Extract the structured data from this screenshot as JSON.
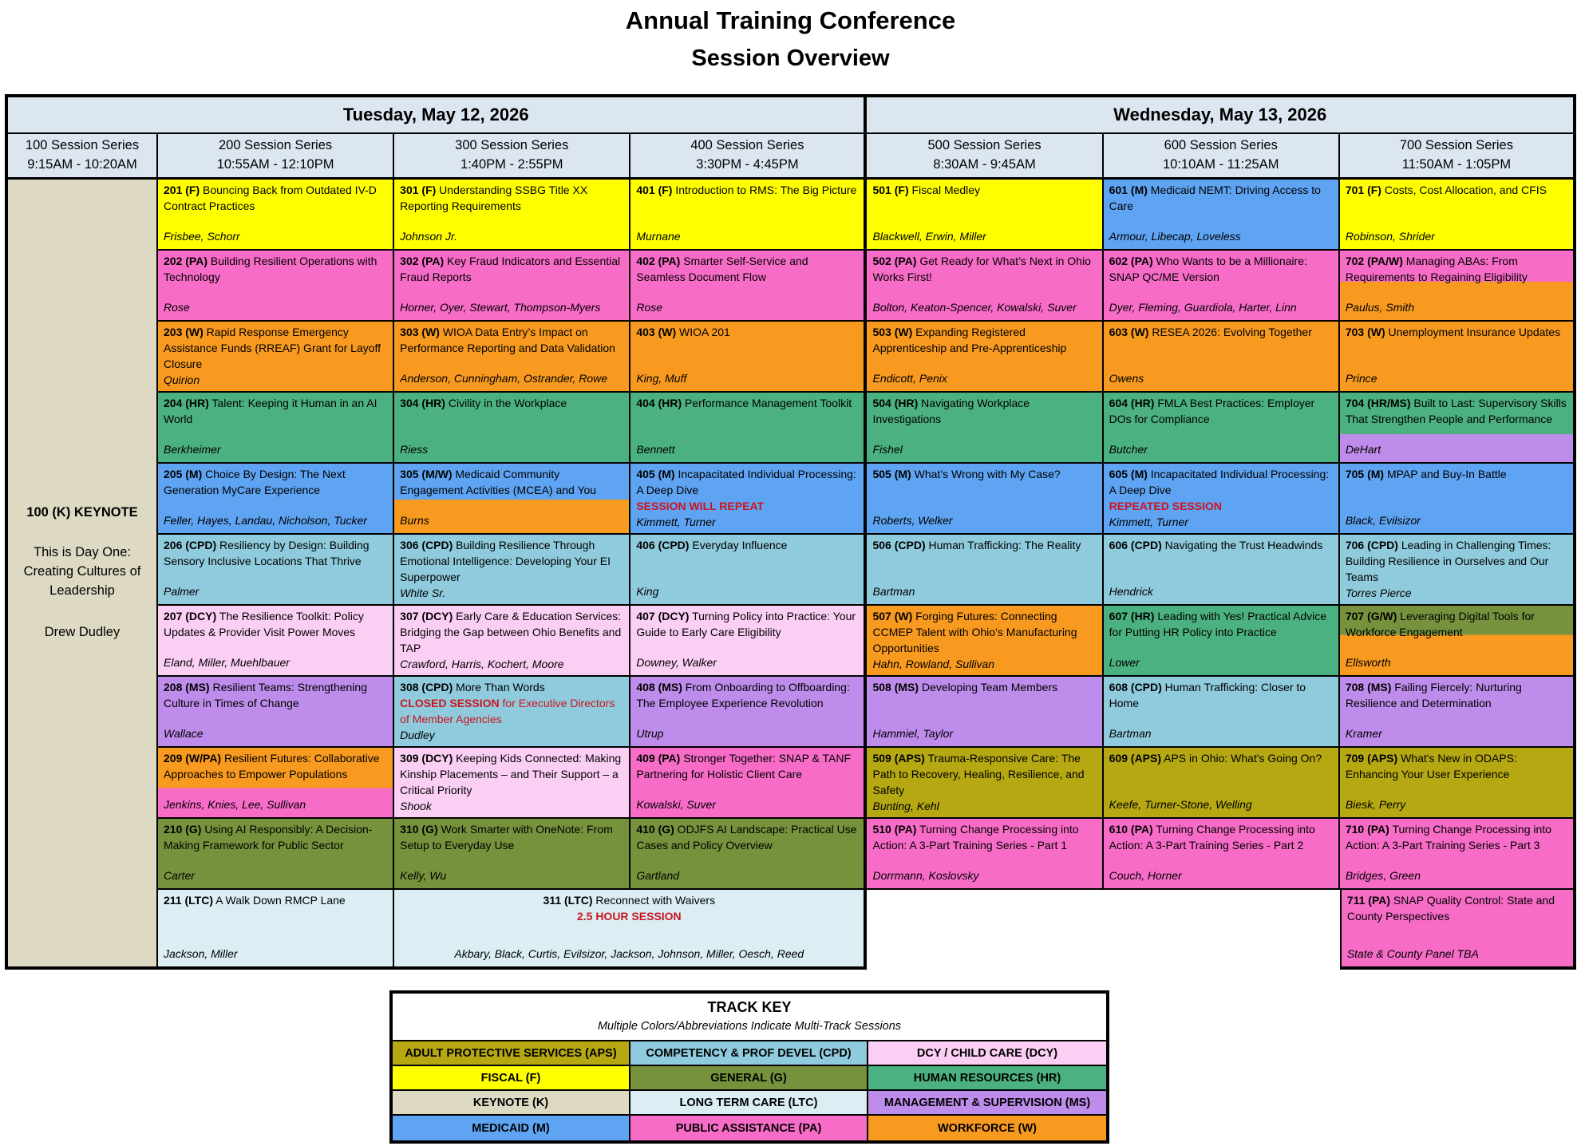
{
  "page_title": {
    "line1": "Annual Training Conference",
    "line2": "Session Overview"
  },
  "track_colors": {
    "APS": "#B5A813",
    "CPD": "#8FCBDC",
    "DCY": "#FBCFF4",
    "F": "#FFFF00",
    "G": "#76923C",
    "HR": "#4CB180",
    "K": "#DDD9C3",
    "LTC": "#DAEEF3",
    "MS": "#BE8CEA",
    "M": "#5FA4F2",
    "PA": "#F76CC7",
    "W": "#F89A1F"
  },
  "header_color": "#DCE6F1",
  "note_color": "#CC1420",
  "schedule": {
    "days": [
      {
        "label": "Tuesday, May 12, 2026",
        "span": 4
      },
      {
        "label": "Wednesday, May 13, 2026",
        "span": 3
      }
    ],
    "columns": [
      {
        "series": "100 Session Series",
        "time": "9:15AM - 10:20AM"
      },
      {
        "series": "200 Session Series",
        "time": "10:55AM - 12:10PM"
      },
      {
        "series": "300 Session Series",
        "time": "1:40PM - 2:55PM"
      },
      {
        "series": "400 Session Series",
        "time": "3:30PM - 4:45PM"
      },
      {
        "series": "500 Session Series",
        "time": "8:30AM - 9:45AM"
      },
      {
        "series": "600 Session Series",
        "time": "10:10AM - 11:25AM"
      },
      {
        "series": "700 Session Series",
        "time": "11:50AM - 1:05PM"
      }
    ],
    "keynote": {
      "title": "100 (K) KEYNOTE",
      "subtitle": "This is Day One: Creating Cultures of Leadership",
      "speaker": "Drew Dudley",
      "track": "K"
    },
    "sessions": [
      {
        "code": "201",
        "tracks": [
          "F"
        ],
        "title": "Bouncing Back from Outdated IV-D Contract Practices",
        "speakers": "Frisbee, Schorr"
      },
      {
        "code": "202",
        "tracks": [
          "PA"
        ],
        "title": "Building Resilient Operations with Technology",
        "speakers": "Rose"
      },
      {
        "code": "203",
        "tracks": [
          "W"
        ],
        "title": "Rapid Response Emergency Assistance Funds (RREAF) Grant for Layoff Closure",
        "speakers": "Quirion"
      },
      {
        "code": "204",
        "tracks": [
          "HR"
        ],
        "title": "Talent: Keeping it Human in an AI World",
        "speakers": "Berkheimer"
      },
      {
        "code": "205",
        "tracks": [
          "M"
        ],
        "title": "Choice By Design: The Next Generation MyCare Experience",
        "speakers": "Feller, Hayes, Landau, Nicholson, Tucker"
      },
      {
        "code": "206",
        "tracks": [
          "CPD"
        ],
        "title": "Resiliency by Design: Building Sensory Inclusive Locations That Thrive",
        "speakers": "Palmer"
      },
      {
        "code": "207",
        "tracks": [
          "DCY"
        ],
        "title": "The Resilience Toolkit: Policy Updates & Provider Visit Power Moves",
        "speakers": "Eland, Miller, Muehlbauer"
      },
      {
        "code": "208",
        "tracks": [
          "MS"
        ],
        "title": "Resilient Teams: Strengthening Culture in Times of Change",
        "speakers": "Wallace"
      },
      {
        "code": "209",
        "tracks": [
          "W",
          "PA"
        ],
        "split": 58,
        "title": "Resilient Futures: Collaborative Approaches to Empower Populations",
        "speakers": "Jenkins, Knies, Lee, Sullivan"
      },
      {
        "code": "210",
        "tracks": [
          "G"
        ],
        "title": "Using AI Responsibly: A Decision-Making Framework for Public Sector",
        "speakers": "Carter"
      },
      {
        "code": "211",
        "tracks": [
          "LTC"
        ],
        "title": "A Walk Down RMCP Lane",
        "speakers": "Jackson, Miller"
      },
      {
        "code": "301",
        "tracks": [
          "F"
        ],
        "title": "Understanding SSBG Title XX Reporting Requirements",
        "speakers": "Johnson Jr."
      },
      {
        "code": "302",
        "tracks": [
          "PA"
        ],
        "title": "Key Fraud Indicators and Essential Fraud Reports",
        "speakers": "Horner, Oyer, Stewart, Thompson-Myers"
      },
      {
        "code": "303",
        "tracks": [
          "W"
        ],
        "title": "WIOA Data Entry’s Impact on Performance Reporting and Data Validation",
        "speakers": "Anderson, Cunningham, Ostrander, Rowe"
      },
      {
        "code": "304",
        "tracks": [
          "HR"
        ],
        "title": "Civility in the Workplace",
        "speakers": "Riess"
      },
      {
        "code": "305",
        "tracks": [
          "M",
          "W"
        ],
        "split": 52,
        "title": "Medicaid Community Engagement Activities (MCEA) and You",
        "speakers": "Burns"
      },
      {
        "code": "306",
        "tracks": [
          "CPD"
        ],
        "title": "Building Resilience Through Emotional Intelligence: Developing Your EI Superpower",
        "speakers": "White Sr."
      },
      {
        "code": "307",
        "tracks": [
          "DCY"
        ],
        "title": "Early Care & Education Services: Bridging the Gap between Ohio Benefits and TAP",
        "speakers": "Crawford, Harris, Kochert, Moore"
      },
      {
        "code": "308",
        "tracks": [
          "CPD"
        ],
        "title": "More Than Words",
        "note_bold": "CLOSED SESSION",
        "note_rest": " for Executive Directors of Member Agencies",
        "speakers": "Dudley"
      },
      {
        "code": "309",
        "tracks": [
          "DCY"
        ],
        "title": "Keeping Kids Connected: Making Kinship Placements – and Their Support – a Critical Priority",
        "speakers": "Shook"
      },
      {
        "code": "310",
        "tracks": [
          "G"
        ],
        "title": "Work Smarter with OneNote: From Setup to Everyday Use",
        "speakers": "Kelly, Wu"
      },
      {
        "code": "311",
        "tracks": [
          "LTC"
        ],
        "span": 2,
        "centered": true,
        "title": "Reconnect with Waivers",
        "note_bold": "2.5 HOUR SESSION",
        "speakers": "Akbary, Black, Curtis, Evilsizor, Jackson, Johnson, Miller, Oesch, Reed"
      },
      {
        "code": "401",
        "tracks": [
          "F"
        ],
        "title": "Introduction to RMS: The Big Picture",
        "speakers": "Murnane"
      },
      {
        "code": "402",
        "tracks": [
          "PA"
        ],
        "title": "Smarter Self-Service and Seamless Document Flow",
        "speakers": "Rose"
      },
      {
        "code": "403",
        "tracks": [
          "W"
        ],
        "title": "WIOA 201",
        "speakers": "King, Muff"
      },
      {
        "code": "404",
        "tracks": [
          "HR"
        ],
        "title": "Performance Management Toolkit",
        "speakers": "Bennett"
      },
      {
        "code": "405",
        "tracks": [
          "M"
        ],
        "title": "Incapacitated Individual Processing: A Deep Dive",
        "note_bold": "SESSION WILL REPEAT",
        "speakers": "Kimmett, Turner"
      },
      {
        "code": "406",
        "tracks": [
          "CPD"
        ],
        "title": "Everyday Influence",
        "speakers": "King"
      },
      {
        "code": "407",
        "tracks": [
          "DCY"
        ],
        "title": "Turning Policy into Practice: Your Guide to Early Care Eligibility",
        "speakers": "Downey, Walker"
      },
      {
        "code": "408",
        "tracks": [
          "MS"
        ],
        "title": "From Onboarding to Offboarding: The Employee Experience Revolution",
        "speakers": "Utrup"
      },
      {
        "code": "409",
        "tracks": [
          "PA"
        ],
        "title": "Stronger Together: SNAP & TANF Partnering for Holistic Client Care",
        "speakers": "Kowalski, Suver"
      },
      {
        "code": "410",
        "tracks": [
          "G"
        ],
        "title": "ODJFS AI Landscape: Practical Use Cases and Policy Overview",
        "speakers": "Gartland"
      },
      {
        "code": "501",
        "tracks": [
          "F"
        ],
        "title": "Fiscal Medley",
        "speakers": "Blackwell, Erwin, Miller"
      },
      {
        "code": "502",
        "tracks": [
          "PA"
        ],
        "title": "Get Ready for What’s Next in Ohio Works First!",
        "speakers": "Bolton, Keaton-Spencer, Kowalski, Suver"
      },
      {
        "code": "503",
        "tracks": [
          "W"
        ],
        "title": "Expanding Registered Apprenticeship and Pre-Apprenticeship",
        "speakers": "Endicott, Penix"
      },
      {
        "code": "504",
        "tracks": [
          "HR"
        ],
        "title": "Navigating Workplace Investigations",
        "speakers": "Fishel"
      },
      {
        "code": "505",
        "tracks": [
          "M"
        ],
        "title": "What’s Wrong with My Case?",
        "speakers": "Roberts, Welker"
      },
      {
        "code": "506",
        "tracks": [
          "CPD"
        ],
        "title": "Human Trafficking: The Reality",
        "speakers": "Bartman"
      },
      {
        "code": "507",
        "tracks": [
          "W"
        ],
        "title": "Forging Futures: Connecting CCMEP Talent with Ohio’s Manufacturing Opportunities",
        "speakers": "Hahn, Rowland, Sullivan"
      },
      {
        "code": "508",
        "tracks": [
          "MS"
        ],
        "title": "Developing Team Members",
        "speakers": "Hammiel, Taylor"
      },
      {
        "code": "509",
        "tracks": [
          "APS"
        ],
        "title": "Trauma-Responsive Care: The Path to Recovery, Healing, Resilience, and Safety",
        "speakers": "Bunting, Kehl"
      },
      {
        "code": "510",
        "tracks": [
          "PA"
        ],
        "title": "Turning Change Processing into Action: A 3-Part Training Series - Part 1",
        "speakers": "Dorrmann, Koslovsky"
      },
      {
        "code": "601",
        "tracks": [
          "M"
        ],
        "title": "Medicaid NEMT: Driving Access to Care",
        "speakers": "Armour, Libecap, Loveless"
      },
      {
        "code": "602",
        "tracks": [
          "PA"
        ],
        "title": "Who Wants to be a Millionaire: SNAP QC/ME Version",
        "speakers": "Dyer, Fleming, Guardiola, Harter, Linn"
      },
      {
        "code": "603",
        "tracks": [
          "W"
        ],
        "title": "RESEA 2026: Evolving Together",
        "speakers": "Owens"
      },
      {
        "code": "604",
        "tracks": [
          "HR"
        ],
        "title": "FMLA Best Practices: Employer DOs for Compliance",
        "speakers": "Butcher"
      },
      {
        "code": "605",
        "tracks": [
          "M"
        ],
        "title": "Incapacitated Individual Processing: A Deep Dive",
        "note_bold": "REPEATED SESSION",
        "speakers": "Kimmett, Turner"
      },
      {
        "code": "606",
        "tracks": [
          "CPD"
        ],
        "title": "Navigating the Trust Headwinds",
        "speakers": "Hendrick"
      },
      {
        "code": "607",
        "tracks": [
          "HR"
        ],
        "title": "Leading with Yes! Practical Advice for Putting HR Policy into Practice",
        "speakers": "Lower"
      },
      {
        "code": "608",
        "tracks": [
          "CPD"
        ],
        "title": "Human Trafficking: Closer to Home",
        "speakers": "Bartman"
      },
      {
        "code": "609",
        "tracks": [
          "APS"
        ],
        "title": "APS in Ohio: What's Going On?",
        "speakers": "Keefe, Turner-Stone, Welling"
      },
      {
        "code": "610",
        "tracks": [
          "PA"
        ],
        "title": "Turning Change Processing into Action: A 3-Part Training Series - Part 2",
        "speakers": "Couch, Horner"
      },
      {
        "code": "701",
        "tracks": [
          "F"
        ],
        "title": "Costs, Cost Allocation, and CFIS",
        "speakers": "Robinson, Shrider"
      },
      {
        "code": "702",
        "tracks": [
          "PA",
          "W"
        ],
        "split": 45,
        "title": "Managing ABAs: From Requirements to Regaining Eligibility",
        "speakers": "Paulus, Smith"
      },
      {
        "code": "703",
        "tracks": [
          "W"
        ],
        "title": "Unemployment Insurance Updates",
        "speakers": "Prince"
      },
      {
        "code": "704",
        "tracks": [
          "HR",
          "MS"
        ],
        "split": 60,
        "title": "Built to Last: Supervisory Skills That Strengthen People and Performance",
        "speakers": "DeHart"
      },
      {
        "code": "705",
        "tracks": [
          "M"
        ],
        "title": "MPAP and Buy-In Battle",
        "speakers": "Black, Evilsizor"
      },
      {
        "code": "706",
        "tracks": [
          "CPD"
        ],
        "title": "Leading in Challenging Times: Building Resilience in Ourselves and Our Teams",
        "speakers": "Torres Pierce"
      },
      {
        "code": "707",
        "tracks": [
          "G",
          "W"
        ],
        "split": 42,
        "title": "Leveraging Digital Tools for Workforce Engagement",
        "speakers": "Ellsworth"
      },
      {
        "code": "708",
        "tracks": [
          "MS"
        ],
        "title": "Failing Fiercely: Nurturing Resilience and Determination",
        "speakers": "Kramer"
      },
      {
        "code": "709",
        "tracks": [
          "APS"
        ],
        "title": "What's New in ODAPS: Enhancing Your User Experience",
        "speakers": "Biesk, Perry"
      },
      {
        "code": "710",
        "tracks": [
          "PA"
        ],
        "title": "Turning Change Processing into Action: A 3-Part Training Series - Part 3",
        "speakers": "Bridges, Green"
      },
      {
        "code": "711",
        "tracks": [
          "PA"
        ],
        "title": "SNAP Quality Control: State and County Perspectives",
        "speakers": "State & County Panel TBA"
      }
    ]
  },
  "track_key": {
    "title": "TRACK KEY",
    "subtitle": "Multiple Colors/Abbreviations Indicate Multi-Track Sessions",
    "entries": [
      {
        "label": "ADULT PROTECTIVE SERVICES (APS)",
        "track": "APS"
      },
      {
        "label": "COMPETENCY & PROF DEVEL (CPD)",
        "track": "CPD"
      },
      {
        "label": "DCY / CHILD CARE (DCY)",
        "track": "DCY"
      },
      {
        "label": "FISCAL (F)",
        "track": "F"
      },
      {
        "label": "GENERAL (G)",
        "track": "G"
      },
      {
        "label": "HUMAN RESOURCES (HR)",
        "track": "HR"
      },
      {
        "label": "KEYNOTE (K)",
        "track": "K"
      },
      {
        "label": "LONG TERM CARE (LTC)",
        "track": "LTC"
      },
      {
        "label": "MANAGEMENT & SUPERVISION (MS)",
        "track": "MS"
      },
      {
        "label": "MEDICAID (M)",
        "track": "M"
      },
      {
        "label": "PUBLIC ASSISTANCE (PA)",
        "track": "PA"
      },
      {
        "label": "WORKFORCE (W)",
        "track": "W"
      }
    ]
  }
}
